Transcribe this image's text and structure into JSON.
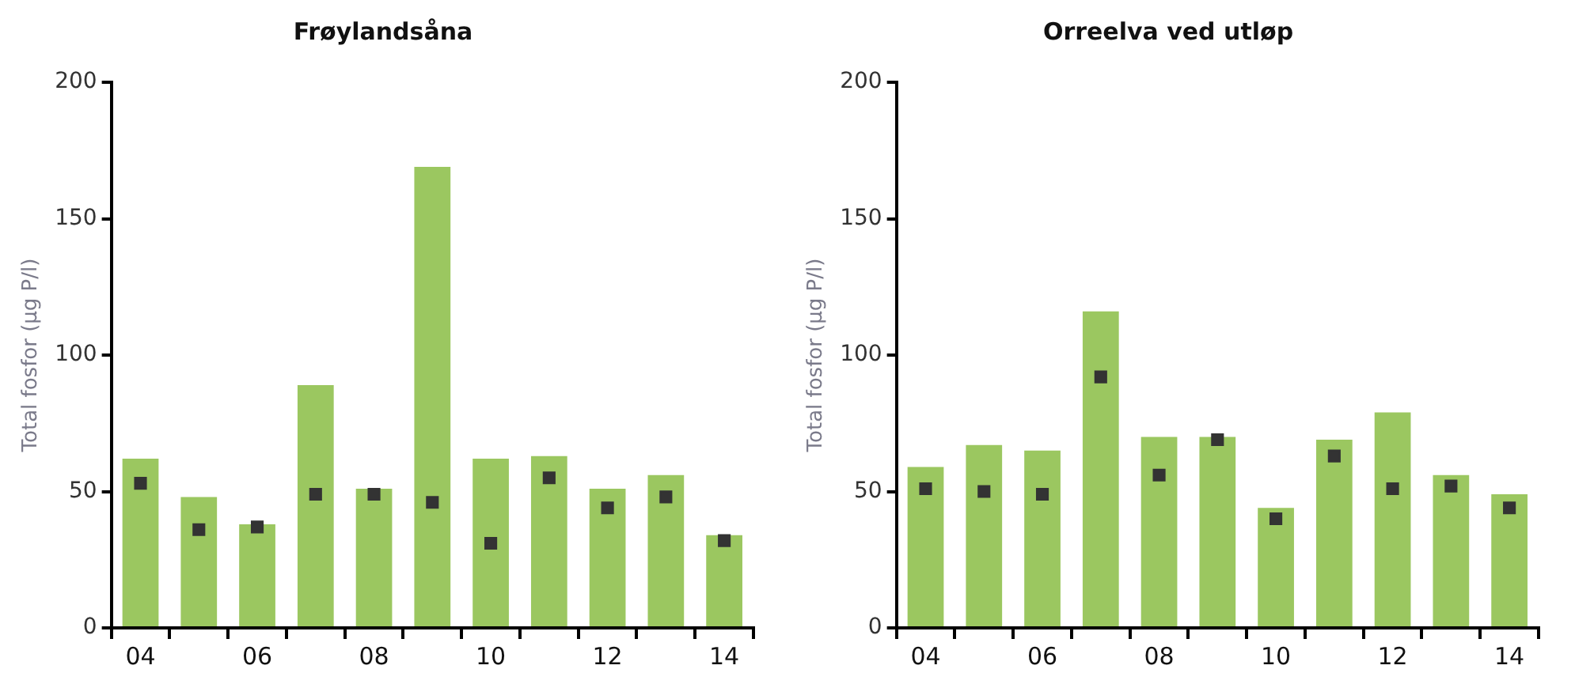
{
  "chart_data": [
    {
      "type": "bar",
      "title": "Frøylandsåna",
      "ylabel": "Total fosfor (µg P/l)",
      "categories": [
        "04",
        null,
        "06",
        null,
        "08",
        null,
        "10",
        null,
        "12",
        null,
        "14"
      ],
      "ylim": [
        0,
        200
      ],
      "yticks": [
        0,
        50,
        100,
        150,
        200
      ],
      "grid": false,
      "legend": false,
      "series": [
        {
          "color": "#9bc760",
          "values": [
            62,
            48,
            38,
            89,
            51,
            169,
            62,
            63,
            51,
            56,
            34
          ]
        },
        {
          "type": "scatter",
          "marker": "square",
          "color": "#333333",
          "values": [
            53,
            36,
            37,
            49,
            49,
            46,
            31,
            55,
            44,
            48,
            32
          ]
        }
      ]
    },
    {
      "type": "bar",
      "title": "Orreelva ved utløp",
      "ylabel": "Total fosfor (µg P/l)",
      "categories": [
        "04",
        null,
        "06",
        null,
        "08",
        null,
        "10",
        null,
        "12",
        null,
        "14"
      ],
      "ylim": [
        0,
        200
      ],
      "yticks": [
        0,
        50,
        100,
        150,
        200
      ],
      "grid": false,
      "legend": false,
      "series": [
        {
          "color": "#9bc760",
          "values": [
            59,
            67,
            65,
            116,
            70,
            70,
            44,
            69,
            79,
            56,
            49
          ]
        },
        {
          "type": "scatter",
          "marker": "square",
          "color": "#333333",
          "values": [
            51,
            50,
            49,
            92,
            56,
            69,
            40,
            63,
            51,
            52,
            44
          ]
        }
      ]
    }
  ]
}
